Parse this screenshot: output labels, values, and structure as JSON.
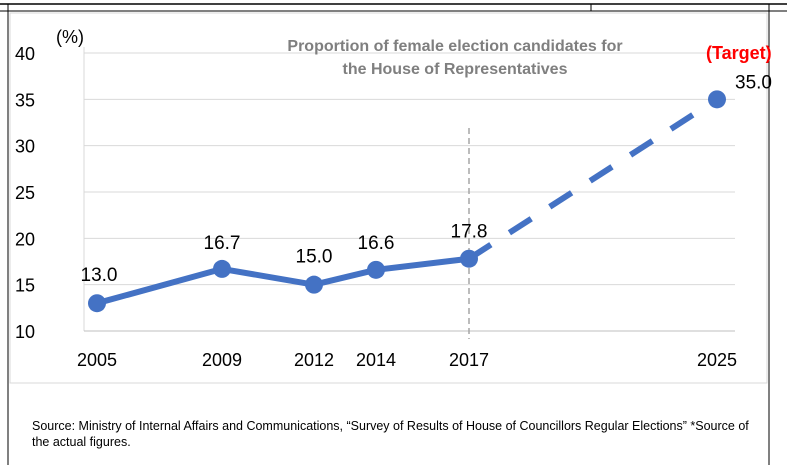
{
  "chart_data": {
    "type": "line",
    "title_line1": "Proportion of female election candidates for",
    "title_line2": "the House of Representatives",
    "ylabel": "(%)",
    "ylim": [
      10,
      40
    ],
    "yticks": [
      "10",
      "15",
      "20",
      "25",
      "30",
      "35",
      "40"
    ],
    "x_years": [
      2005,
      2009,
      2012,
      2014,
      2017,
      2025
    ],
    "x_tick_labels": [
      "2005",
      "2009",
      "2012",
      "2014",
      "2017",
      "2025"
    ],
    "grid": true,
    "vertical_marker_year": 2017,
    "series": [
      {
        "points": [
          {
            "x": 2005,
            "y": 13.0,
            "label": "13.0"
          },
          {
            "x": 2009,
            "y": 16.7,
            "label": "16.7"
          },
          {
            "x": 2012,
            "y": 15.0,
            "label": "15.0"
          },
          {
            "x": 2014,
            "y": 16.6,
            "label": "16.6"
          },
          {
            "x": 2017,
            "y": 17.8,
            "label": "17.8"
          }
        ],
        "color": "#4472c4"
      },
      {
        "points": [
          {
            "x": 2017,
            "y": 17.8
          },
          {
            "x": 2025,
            "y": 35.0,
            "label": "35.0"
          }
        ],
        "color": "#4472c4",
        "dashed": true
      }
    ],
    "annotation": {
      "text": "(Target)",
      "color": "#ff0000"
    }
  },
  "source_text": "Source: Ministry of Internal Affairs and Communications, “Survey of Results of House of Councillors Regular Elections” *Source of the actual figures."
}
